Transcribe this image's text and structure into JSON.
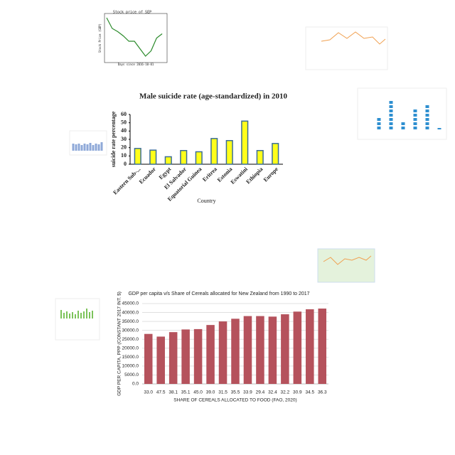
{
  "chart_data": [
    {
      "type": "line",
      "title": "Stock price of SEP",
      "x_label": "Days since 2016-10-01",
      "y_label": "Stock Price (GBP)",
      "x": [
        0,
        1,
        2,
        3,
        4,
        5,
        6,
        7,
        8,
        9,
        10
      ],
      "values": [
        102,
        92,
        89,
        85,
        80,
        80,
        73,
        66,
        71,
        83,
        87
      ],
      "color": "#2a8a2a",
      "xlim": [
        0,
        10.5
      ],
      "ylim": [
        62,
        104
      ]
    },
    {
      "type": "bar",
      "title": "Male suicide rate (age-standardized) in 2010",
      "x_label": "Country",
      "y_label": "suicide rate percentage",
      "categories": [
        "Eastern Sub-...",
        "Ecuador",
        "Egypt",
        "El Salvador",
        "Equatorial Guinea",
        "Eritrea",
        "Estonia",
        "Eswatini",
        "Ethiopia",
        "Europe"
      ],
      "values": [
        19,
        17,
        9,
        16.5,
        15,
        31,
        28.5,
        52,
        16.5,
        25
      ],
      "color": "#ffff1a",
      "edge_color": "#3b6e96",
      "ylim": [
        0,
        60
      ],
      "yticks": [
        0,
        10,
        20,
        30,
        40,
        50,
        60
      ],
      "grid": false
    },
    {
      "type": "bar",
      "title": "GDP per capita v/s Share of Cereals allocated for New Zealand from 1990 to 2017",
      "x_label": "SHARE OF CEREALS ALLOCATED TO FOOD (FAO, 2020)",
      "y_label": "GDP PER CAPITA, PPP (CONSTANT 2017 INT. $)",
      "categories": [
        "33.0",
        "47.5",
        "38.1",
        "35.1",
        "45.0",
        "39.0",
        "31.5",
        "35.5",
        "33.9",
        "29.4",
        "32.4",
        "32.2",
        "30.9",
        "34.5",
        "36.3"
      ],
      "values": [
        28000,
        26500,
        29000,
        30500,
        30700,
        33000,
        35000,
        36500,
        38000,
        38000,
        37700,
        39000,
        40500,
        41800,
        42200
      ],
      "color": "#b5525c",
      "ylim": [
        0,
        45000
      ],
      "yticks": [
        {
          "value": 0,
          "label": "0.0"
        },
        {
          "value": 5000,
          "label": "5000.0"
        },
        {
          "value": 10000,
          "label": "10000.0"
        },
        {
          "value": 15000,
          "label": "15000.0"
        },
        {
          "value": 20000,
          "label": "20000.0"
        },
        {
          "value": 25000,
          "label": "25000.0"
        },
        {
          "value": 30000,
          "label": "30000.0"
        },
        {
          "value": 35000,
          "label": "35000.0"
        },
        {
          "value": 40000,
          "label": "40000.0"
        },
        {
          "value": 45000,
          "label": "45000.0"
        }
      ],
      "grid": true
    }
  ]
}
